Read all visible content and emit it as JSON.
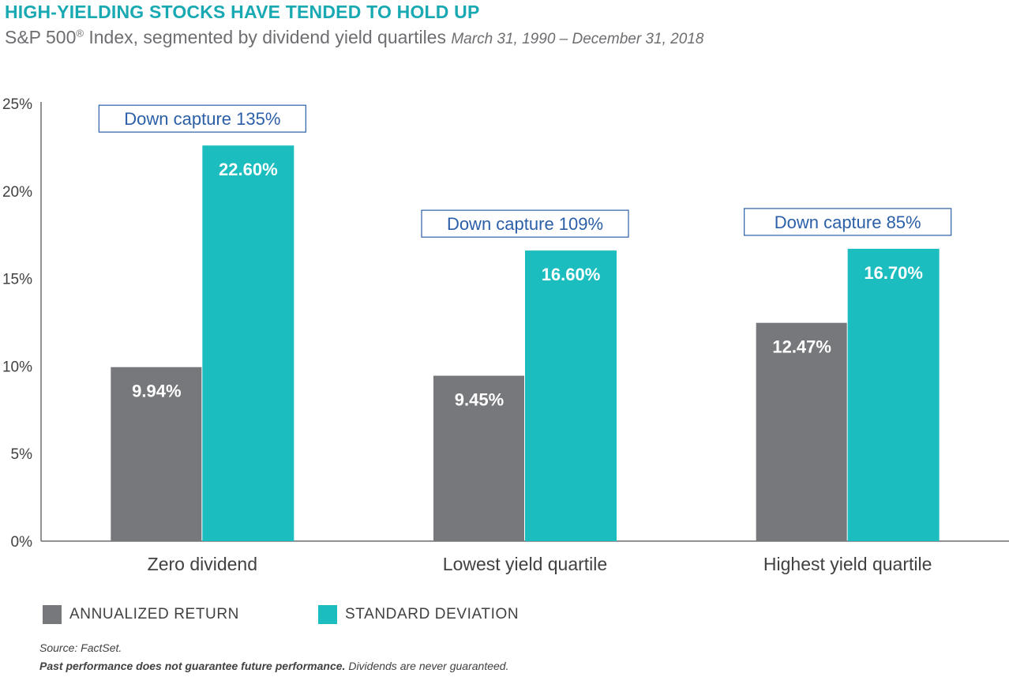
{
  "title": "HIGH-YIELDING STOCKS HAVE TENDED TO HOLD UP",
  "subtitle": {
    "main": "S&P 500",
    "reg": "®",
    "rest": " Index, segmented by dividend yield quartiles ",
    "period": "March 31, 1990 – December 31, 2018"
  },
  "colors": {
    "annualized_return": "#77787b",
    "standard_deviation": "#1bbdbf",
    "title": "#18a9b3",
    "annotation": "#2b5fa8"
  },
  "chart_data": {
    "type": "bar",
    "categories": [
      "Zero dividend",
      "Lowest yield quartile",
      "Highest yield quartile"
    ],
    "series": [
      {
        "name": "ANNUALIZED RETURN",
        "values": [
          9.94,
          9.45,
          12.47
        ],
        "labels": [
          "9.94%",
          "9.45%",
          "12.47%"
        ]
      },
      {
        "name": "STANDARD DEVIATION",
        "values": [
          22.6,
          16.6,
          16.7
        ],
        "labels": [
          "22.60%",
          "16.60%",
          "16.70%"
        ]
      }
    ],
    "annotations": [
      "Down capture 135%",
      "Down capture 109%",
      "Down capture 85%"
    ],
    "yticks": [
      "0%",
      "5%",
      "10%",
      "15%",
      "20%",
      "25%"
    ],
    "ylim": [
      0,
      25
    ],
    "grid": false,
    "legend_position": "bottom-left"
  },
  "legend": {
    "items": [
      "ANNUALIZED RETURN",
      "STANDARD DEVIATION"
    ]
  },
  "footnotes": {
    "source": "Source: FactSet.",
    "disclaimer_bold": "Past performance does not guarantee future performance.",
    "disclaimer_rest": " Dividends are never guaranteed."
  }
}
